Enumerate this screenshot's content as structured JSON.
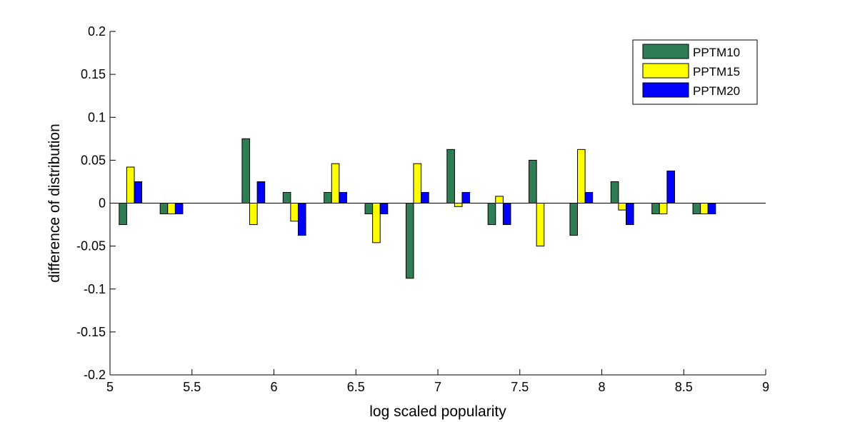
{
  "chart_data": {
    "type": "bar",
    "xlabel": "log scaled popularity",
    "ylabel": "difference of distribution",
    "xlim": [
      5,
      9
    ],
    "ylim": [
      -0.2,
      0.2
    ],
    "xticks": [
      "5",
      "5.5",
      "6",
      "6.5",
      "7",
      "7.5",
      "8",
      "8.5",
      "9"
    ],
    "yticks": [
      "0.2",
      "0.15",
      "0.1",
      "0.05",
      "0",
      "-0.05",
      "-0.1",
      "-0.15",
      "-0.2"
    ],
    "grid": false,
    "legend_position": "top-right",
    "x": [
      5.125,
      5.375,
      5.625,
      5.875,
      6.125,
      6.375,
      6.625,
      6.875,
      7.125,
      7.375,
      7.625,
      7.875,
      8.125,
      8.375,
      8.625
    ],
    "series": [
      {
        "name": "PPTM10",
        "color": "#2e7d55",
        "values": [
          -0.025,
          -0.0125,
          0,
          0.075,
          0.0125,
          0.0125,
          -0.0125,
          -0.0875,
          0.0625,
          -0.025,
          0.05,
          -0.0375,
          0.025,
          -0.0125,
          -0.0125
        ]
      },
      {
        "name": "PPTM15",
        "color": "#ffff00",
        "values": [
          0.042,
          -0.0125,
          0,
          -0.025,
          -0.021,
          0.046,
          -0.046,
          0.046,
          -0.004,
          0.008,
          -0.05,
          0.0625,
          -0.008,
          -0.0125,
          -0.0125
        ]
      },
      {
        "name": "PPTM20",
        "color": "#0000ff",
        "values": [
          0.025,
          -0.0125,
          0,
          0.025,
          -0.0375,
          0.0125,
          -0.0125,
          0.0125,
          0.0125,
          -0.025,
          0,
          0.0125,
          -0.025,
          0.0375,
          -0.0125
        ]
      }
    ]
  }
}
